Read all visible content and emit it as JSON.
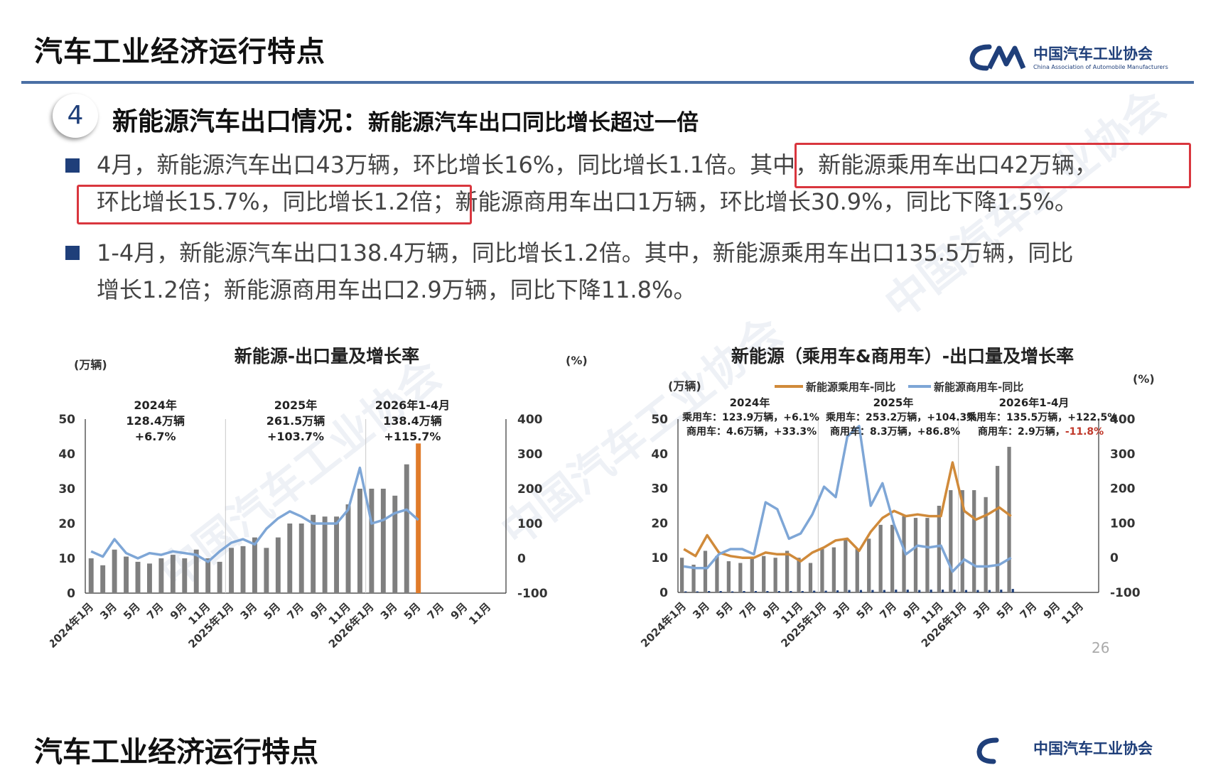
{
  "header": {
    "title": "汽车工业经济运行特点",
    "logo_cn": "中国汽车工业协会",
    "logo_en": "China Association of Automobile Manufacturers",
    "accent_color": "#1f3f7a",
    "rule_color": "#4a6fa5"
  },
  "section": {
    "number": "4",
    "title": "新能源汽车出口情况：",
    "subtitle": "新能源汽车出口同比增长超过一倍"
  },
  "bullets": [
    {
      "lines": [
        "4月，新能源汽车出口43万辆，环比增长16%，同比增长1.1倍。其中，新能源乘用车出口42万辆，",
        "环比增长15.7%，同比增长1.2倍；新能源商用车出口1万辆，环比增长30.9%，同比下降1.5%。"
      ],
      "highlight_color": "#d9363e"
    },
    {
      "lines": [
        "1-4月，新能源汽车出口138.4万辆，同比增长1.2倍。其中，新能源乘用车出口135.5万辆，同比",
        "增长1.2倍；新能源商用车出口2.9万辆，同比下降11.8%。"
      ]
    }
  ],
  "page_number": "26",
  "next_slide_title": "汽车工业经济运行特点",
  "chart_data": [
    {
      "type": "bar",
      "title": "新能源-出口量及增长率",
      "y_unit": "(万辆)",
      "y2_unit": "(%)",
      "ylim": [
        0,
        50
      ],
      "y_ticks": [
        "0",
        "10",
        "20",
        "30",
        "40",
        "50"
      ],
      "y2lim": [
        -100,
        400
      ],
      "y2_ticks": [
        "-100",
        "0",
        "100",
        "200",
        "300",
        "400"
      ],
      "x_ticks": [
        "2024年1月",
        "3月",
        "5月",
        "7月",
        "9月",
        "11月",
        "2025年1月",
        "3月",
        "5月",
        "7月",
        "9月",
        "11月",
        "2026年1月",
        "3月",
        "5月",
        "7月",
        "9月",
        "11月"
      ],
      "period_labels": [
        {
          "year": "2024年",
          "volume": "128.4万辆",
          "growth": "+6.7%"
        },
        {
          "year": "2025年",
          "volume": "261.5万辆",
          "growth": "+103.7%"
        },
        {
          "year": "2026年1-4月",
          "volume": "138.4万辆",
          "growth": "+115.7%"
        }
      ],
      "bar_color": "#7f7f7f",
      "highlight_bar_color": "#e07b2a",
      "line_color": "#7ea6d6",
      "series": [
        {
          "kind": "bar",
          "values": [
            10,
            8,
            12.5,
            10.5,
            9,
            8.5,
            10,
            11,
            10,
            12.5,
            10,
            9,
            13,
            13.5,
            16,
            13,
            16,
            20,
            20,
            22.5,
            22,
            22,
            25.5,
            30,
            30,
            30,
            28,
            37,
            43
          ]
        },
        {
          "kind": "line",
          "values": [
            20,
            5,
            55,
            15,
            0,
            15,
            10,
            20,
            15,
            10,
            -10,
            20,
            45,
            55,
            40,
            85,
            115,
            135,
            120,
            100,
            100,
            100,
            140,
            260,
            100,
            110,
            130,
            140,
            110
          ]
        }
      ]
    },
    {
      "type": "bar",
      "title": "新能源（乘用车&商用车）-出口量及增长率",
      "y_unit": "(万辆)",
      "y2_unit": "(%)",
      "ylim": [
        0,
        50
      ],
      "y_ticks": [
        "0",
        "10",
        "20",
        "30",
        "40",
        "50"
      ],
      "y2lim": [
        -100,
        400
      ],
      "y2_ticks": [
        "-100",
        "0",
        "100",
        "200",
        "300",
        "400"
      ],
      "x_ticks": [
        "2024年1月",
        "3月",
        "5月",
        "7月",
        "9月",
        "11月",
        "2025年1月",
        "3月",
        "5月",
        "7月",
        "9月",
        "11月",
        "2026年1月",
        "3月",
        "5月",
        "7月",
        "9月",
        "11月"
      ],
      "legend": [
        {
          "name": "新能源乘用车-同比",
          "color": "#d08a3a"
        },
        {
          "name": "新能源商用车-同比",
          "color": "#7ea6d6"
        }
      ],
      "period_labels": [
        {
          "year": "2024年",
          "line1": "乘用车：123.9万辆，+6.1%",
          "line2": "商用车：4.6万辆，+33.3%"
        },
        {
          "year": "2025年",
          "line1": "乘用车：253.2万辆，+104.3%",
          "line2": "商用车：8.3万辆，+86.8%"
        },
        {
          "year": "2026年1-4月",
          "line1": "乘用车：135.5万辆，+122.5%",
          "line2_prefix": "商用车：2.9万辆，",
          "line2_value": "-11.8%",
          "line2_value_color": "#c0392b"
        }
      ],
      "bar_color": "#7f7f7f",
      "commercial_bar_color": "#1f3f7a",
      "series": [
        {
          "kind": "bar",
          "name": "乘用车",
          "values": [
            10,
            8,
            12,
            10.5,
            9,
            8.5,
            10,
            10.5,
            10,
            12,
            10,
            8.5,
            12.5,
            13,
            15.5,
            12.5,
            15.5,
            19.5,
            19.5,
            22,
            21.5,
            21.5,
            25,
            29.5,
            29.5,
            29.5,
            27.5,
            36.5,
            42
          ]
        },
        {
          "kind": "bar",
          "name": "商用车",
          "values": [
            0.3,
            0.3,
            0.4,
            0.4,
            0.3,
            0.4,
            0.4,
            0.4,
            0.4,
            0.4,
            0.4,
            0.5,
            0.5,
            0.6,
            0.7,
            0.7,
            0.7,
            0.7,
            0.8,
            0.8,
            0.7,
            0.8,
            0.8,
            0.8,
            0.7,
            0.7,
            0.7,
            0.8,
            1
          ]
        },
        {
          "kind": "line",
          "name": "新能源乘用车-同比",
          "values": [
            25,
            5,
            65,
            15,
            5,
            0,
            0,
            15,
            10,
            10,
            -10,
            15,
            30,
            50,
            55,
            20,
            75,
            115,
            135,
            120,
            125,
            120,
            120,
            275,
            135,
            110,
            125,
            145,
            120
          ]
        },
        {
          "kind": "line",
          "name": "新能源商用车-同比",
          "values": [
            -25,
            -30,
            -30,
            10,
            25,
            25,
            10,
            160,
            140,
            55,
            70,
            125,
            205,
            175,
            350,
            380,
            150,
            215,
            95,
            10,
            35,
            30,
            35,
            -40,
            -5,
            -25,
            -25,
            -20,
            0
          ]
        }
      ]
    }
  ]
}
